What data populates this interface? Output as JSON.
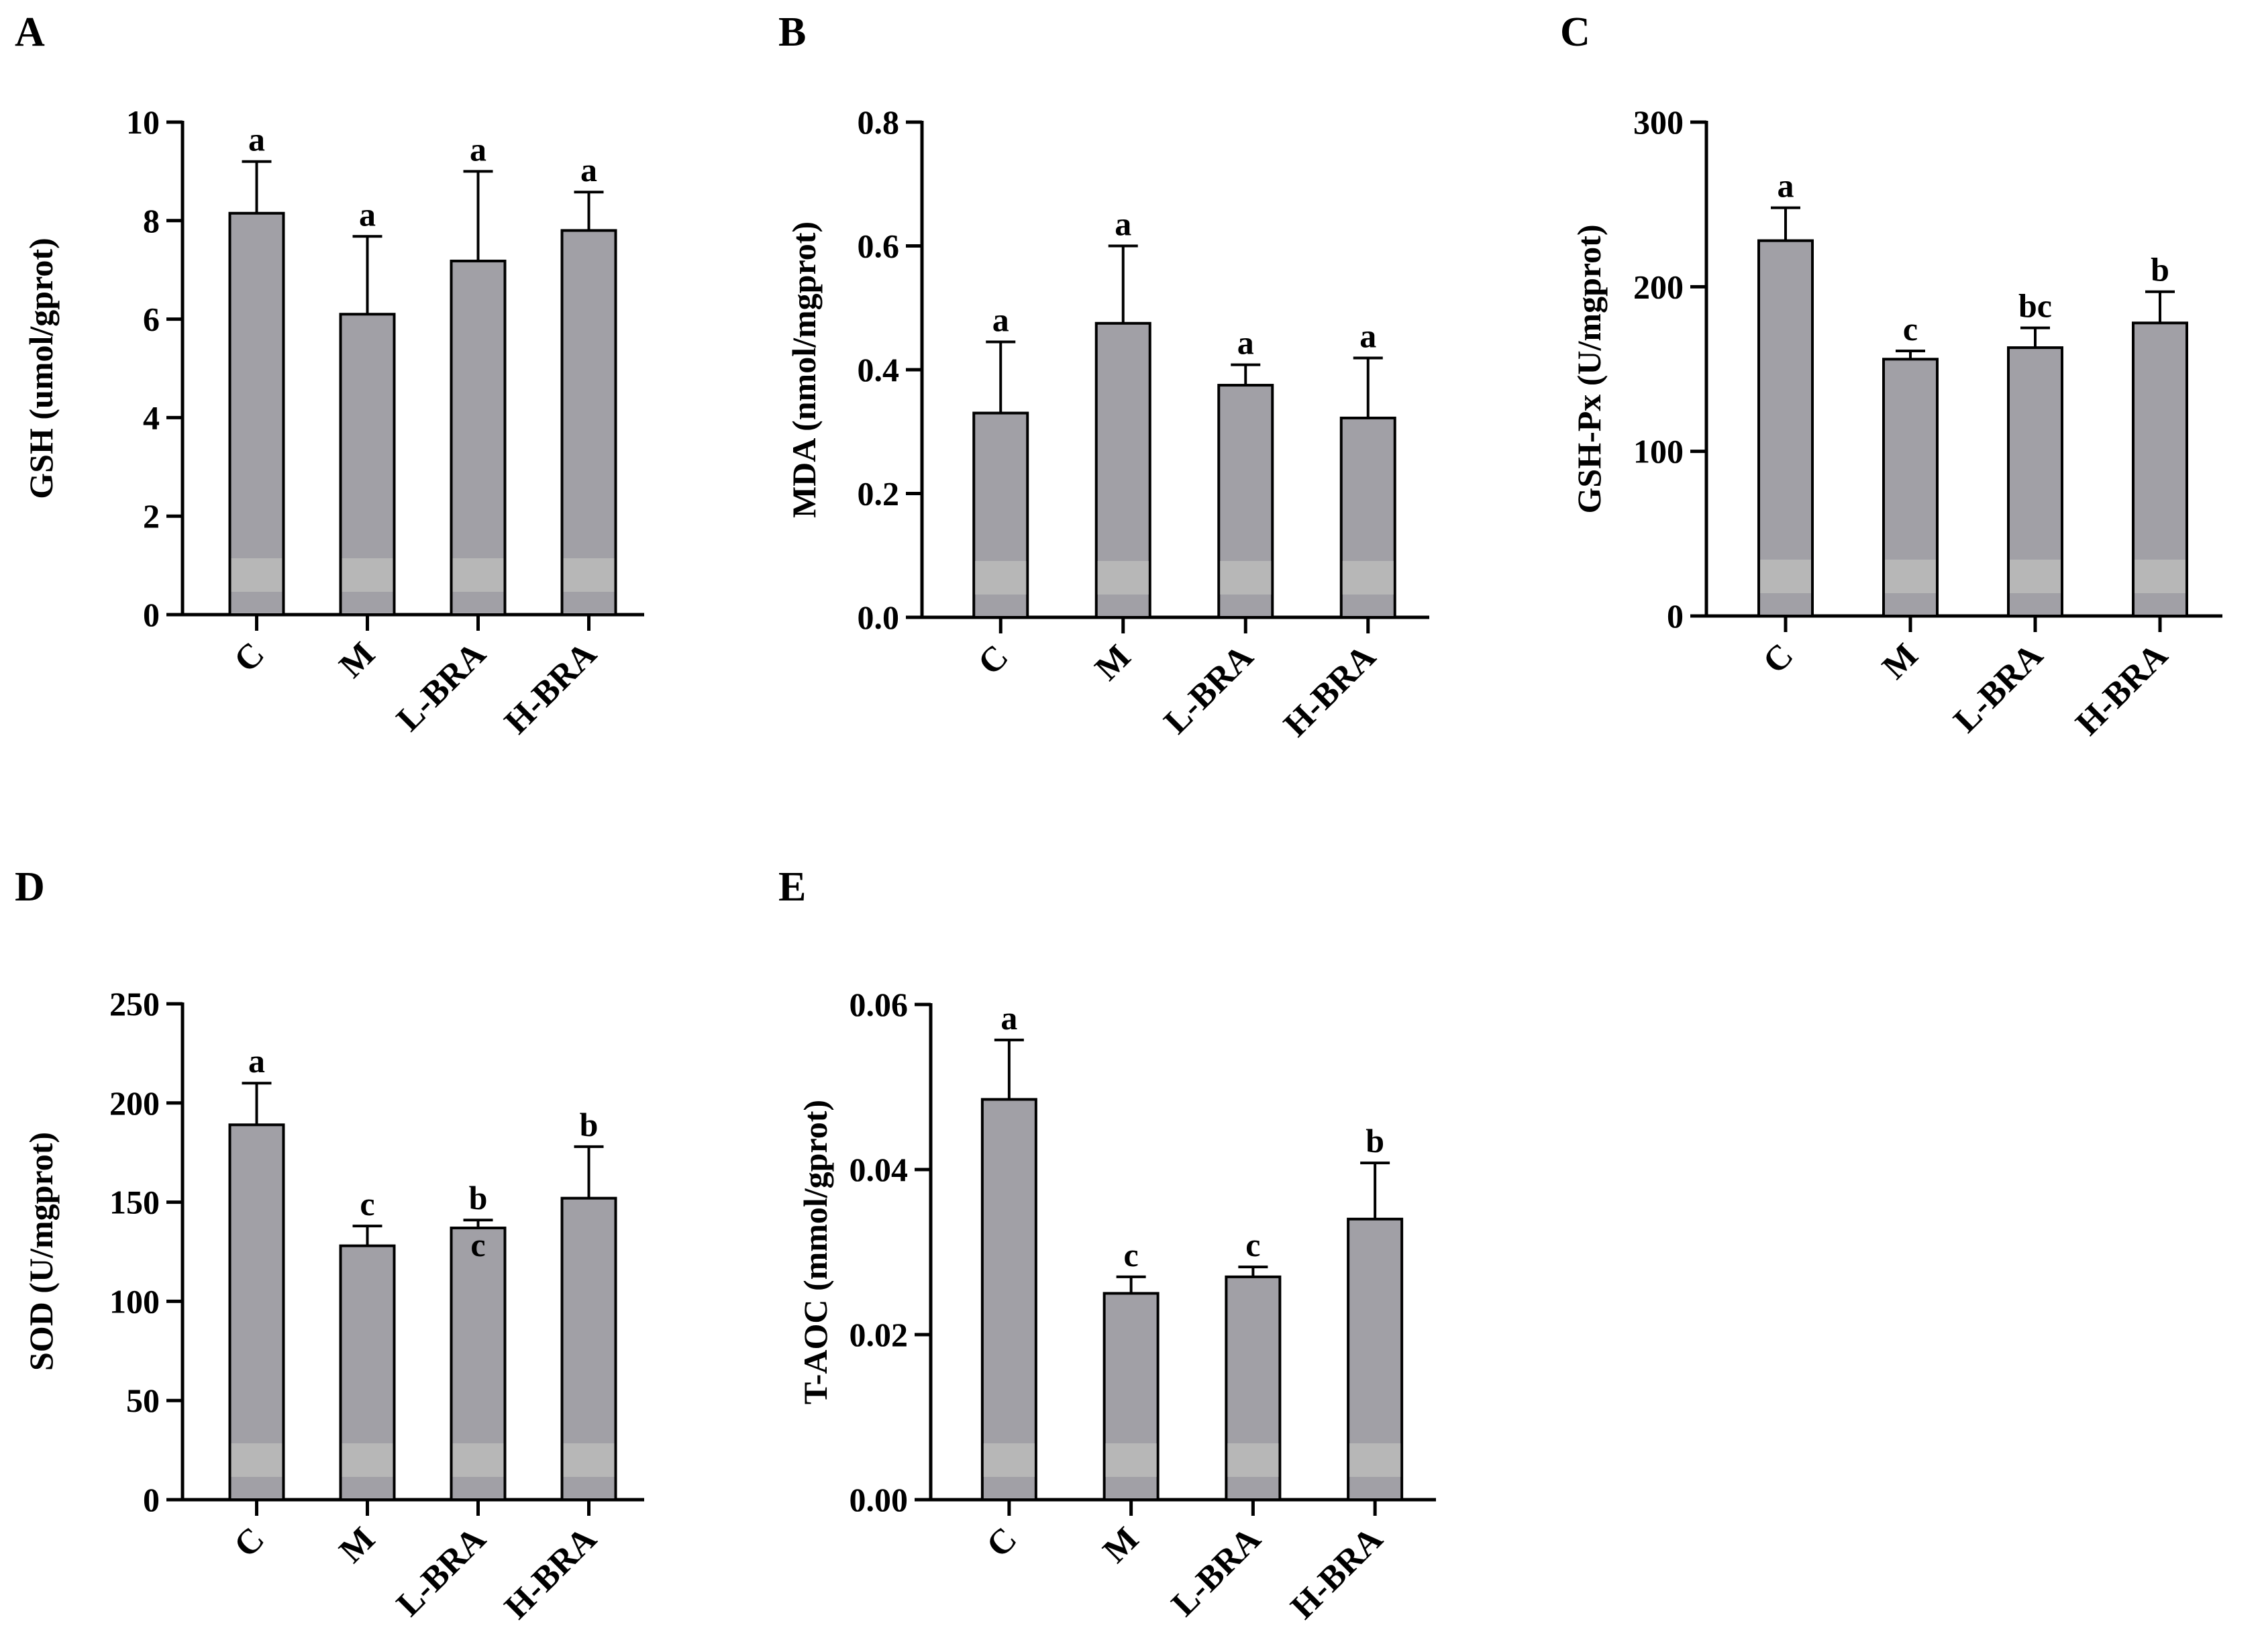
{
  "colors": {
    "bar_fill": "#a1a0a6",
    "bar_band": "#b7b7b7",
    "bar_stroke": "#000000",
    "axis": "#000000"
  },
  "chart_data": [
    {
      "panel": "A",
      "type": "bar",
      "ylabel": "GSH (umol/gprot)",
      "ylim": [
        0,
        10
      ],
      "yticks": [
        0,
        2,
        4,
        6,
        8,
        10
      ],
      "ytick_labels": [
        "0",
        "2",
        "4",
        "6",
        "8",
        "10"
      ],
      "categories": [
        "C",
        "M",
        "L-BRA",
        "H-BRA"
      ],
      "values": [
        8.15,
        6.1,
        7.18,
        7.8
      ],
      "errors": [
        1.05,
        1.58,
        1.82,
        0.78
      ],
      "letters": [
        "a",
        "a",
        "a",
        "a"
      ]
    },
    {
      "panel": "B",
      "type": "bar",
      "ylabel": "MDA (nmol/mgprot)",
      "ylim": [
        0,
        0.8
      ],
      "yticks": [
        0,
        0.2,
        0.4,
        0.6,
        0.8
      ],
      "ytick_labels": [
        "0.0",
        "0.2",
        "0.4",
        "0.6",
        "0.8"
      ],
      "categories": [
        "C",
        "M",
        "L-BRA",
        "H-BRA"
      ],
      "values": [
        0.33,
        0.475,
        0.375,
        0.322
      ],
      "errors": [
        0.115,
        0.125,
        0.033,
        0.097
      ],
      "letters": [
        "a",
        "a",
        "a",
        "a"
      ]
    },
    {
      "panel": "C",
      "type": "bar",
      "ylabel": "GSH-Px (U/mgprot)",
      "ylim": [
        0,
        300
      ],
      "yticks": [
        0,
        100,
        200,
        300
      ],
      "ytick_labels": [
        "0",
        "100",
        "200",
        "300"
      ],
      "categories": [
        "C",
        "M",
        "L-BRA",
        "H-BRA"
      ],
      "values": [
        228,
        156,
        163,
        178
      ],
      "errors": [
        20,
        5,
        12,
        19
      ],
      "letters": [
        "a",
        "c",
        "bc",
        "b"
      ]
    },
    {
      "panel": "D",
      "type": "bar",
      "ylabel": "SOD (U/mgprot)",
      "ylim": [
        0,
        250
      ],
      "yticks": [
        0,
        50,
        100,
        150,
        200,
        250
      ],
      "ytick_labels": [
        "0",
        "50",
        "100",
        "150",
        "200",
        "250"
      ],
      "categories": [
        "C",
        "M",
        "L-BRA",
        "H-BRA"
      ],
      "values": [
        189,
        128,
        137,
        152
      ],
      "errors": [
        21,
        10,
        4,
        26
      ],
      "letters": [
        "a",
        "c",
        "b\nc",
        "b"
      ]
    },
    {
      "panel": "E",
      "type": "bar",
      "ylabel": "T-AOC (mmol/gprot)",
      "ylim": [
        0,
        0.06
      ],
      "yticks": [
        0,
        0.02,
        0.04,
        0.06
      ],
      "ytick_labels": [
        "0.00",
        "0.02",
        "0.04",
        "0.06"
      ],
      "categories": [
        "C",
        "M",
        "L-BRA",
        "H-BRA"
      ],
      "values": [
        0.0485,
        0.025,
        0.027,
        0.034
      ],
      "errors": [
        0.0072,
        0.002,
        0.0012,
        0.0068
      ],
      "letters": [
        "a",
        "c",
        "c",
        "b"
      ]
    }
  ]
}
